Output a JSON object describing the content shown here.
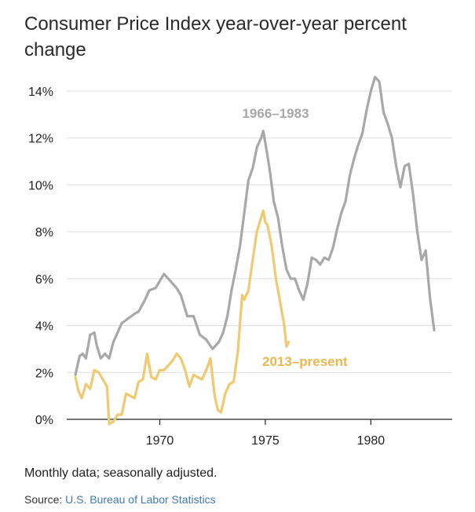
{
  "title": "Consumer Price Index year-over-year percent change",
  "note": "Monthly data; seasonally adjusted.",
  "source": {
    "label": "Source:",
    "link_text": "U.S. Bureau of Labor Statistics"
  },
  "colors": {
    "series_1966": "#a8a8a8",
    "series_2013": "#f0c970",
    "label_2013": "#e9b851",
    "grid": "#dddddd",
    "axis": "#222222"
  },
  "chart_data": {
    "type": "line",
    "ylabel": "",
    "xlabel": "",
    "ylim": [
      0,
      14.6
    ],
    "xlim": [
      1965.3,
      1983.6
    ],
    "yticks": [
      0,
      2,
      4,
      6,
      8,
      10,
      12,
      14
    ],
    "ytick_labels": [
      "0%",
      "2%",
      "4%",
      "6%",
      "8%",
      "10%",
      "12%",
      "14%"
    ],
    "xticks": [
      1970,
      1975,
      1980
    ],
    "xtick_labels": [
      "1970",
      "1975",
      "1980"
    ],
    "grid": true,
    "series": [
      {
        "name": "1966–1983",
        "x": [
          1966.0,
          1966.2,
          1966.35,
          1966.5,
          1966.7,
          1966.9,
          1967.0,
          1967.2,
          1967.4,
          1967.6,
          1967.8,
          1968.0,
          1968.2,
          1968.5,
          1968.8,
          1969.0,
          1969.3,
          1969.5,
          1969.8,
          1970.0,
          1970.2,
          1970.5,
          1970.7,
          1970.8,
          1971.0,
          1971.3,
          1971.6,
          1971.9,
          1972.2,
          1972.5,
          1972.8,
          1973.0,
          1973.2,
          1973.4,
          1973.6,
          1973.8,
          1974.0,
          1974.2,
          1974.4,
          1974.6,
          1974.8,
          1974.9,
          1975.0,
          1975.2,
          1975.4,
          1975.6,
          1975.8,
          1976.0,
          1976.2,
          1976.4,
          1976.6,
          1976.8,
          1977.0,
          1977.2,
          1977.4,
          1977.6,
          1977.8,
          1978.0,
          1978.2,
          1978.4,
          1978.6,
          1978.8,
          1979.0,
          1979.2,
          1979.4,
          1979.6,
          1979.8,
          1980.0,
          1980.2,
          1980.3,
          1980.4,
          1980.6,
          1980.8,
          1981.0,
          1981.2,
          1981.4,
          1981.6,
          1981.8,
          1982.0,
          1982.2,
          1982.4,
          1982.6,
          1982.8,
          1983.0
        ],
        "values": [
          1.9,
          2.7,
          2.8,
          2.6,
          3.6,
          3.7,
          3.2,
          2.6,
          2.8,
          2.6,
          3.3,
          3.7,
          4.1,
          4.3,
          4.5,
          4.6,
          5.1,
          5.5,
          5.6,
          5.9,
          6.2,
          5.9,
          5.7,
          5.6,
          5.3,
          4.4,
          4.4,
          3.6,
          3.4,
          3.0,
          3.3,
          3.7,
          4.4,
          5.5,
          6.4,
          7.4,
          8.8,
          10.2,
          10.7,
          11.6,
          12.0,
          12.3,
          11.8,
          10.7,
          9.3,
          8.6,
          7.4,
          6.4,
          6.0,
          6.0,
          5.5,
          5.1,
          5.8,
          6.9,
          6.8,
          6.6,
          6.9,
          6.8,
          7.3,
          8.1,
          8.8,
          9.3,
          10.4,
          11.1,
          11.7,
          12.2,
          13.2,
          14.0,
          14.6,
          14.5,
          14.4,
          13.1,
          12.6,
          12.0,
          10.8,
          9.9,
          10.8,
          10.9,
          9.6,
          8.0,
          6.8,
          7.2,
          5.2,
          3.8
        ]
      },
      {
        "name": "2013–present",
        "x": [
          1966.0,
          1966.15,
          1966.3,
          1966.5,
          1966.7,
          1966.9,
          1967.1,
          1967.3,
          1967.5,
          1967.6,
          1967.8,
          1968.0,
          1968.2,
          1968.4,
          1968.6,
          1968.8,
          1969.0,
          1969.2,
          1969.4,
          1969.6,
          1969.8,
          1970.0,
          1970.2,
          1970.4,
          1970.6,
          1970.8,
          1971.0,
          1971.2,
          1971.4,
          1971.6,
          1971.8,
          1972.0,
          1972.2,
          1972.4,
          1972.6,
          1972.75,
          1972.9,
          1973.1,
          1973.3,
          1973.5,
          1973.7,
          1973.9,
          1974.0,
          1974.2,
          1974.4,
          1974.6,
          1974.8,
          1974.9,
          1975.0,
          1975.1,
          1975.3,
          1975.5,
          1975.7,
          1975.9,
          1976.0,
          1976.1
        ],
        "values": [
          1.8,
          1.2,
          0.9,
          1.5,
          1.3,
          2.1,
          2.0,
          1.7,
          1.4,
          -0.2,
          -0.1,
          0.2,
          0.2,
          1.1,
          1.0,
          0.9,
          1.6,
          1.7,
          2.8,
          1.8,
          1.7,
          2.1,
          2.1,
          2.3,
          2.5,
          2.8,
          2.6,
          2.1,
          1.4,
          1.9,
          1.8,
          1.7,
          2.1,
          2.6,
          1.0,
          0.4,
          0.3,
          1.1,
          1.5,
          1.6,
          2.9,
          5.3,
          5.1,
          5.5,
          6.8,
          8.0,
          8.6,
          8.9,
          8.4,
          8.3,
          7.4,
          6.0,
          5.0,
          4.0,
          3.1,
          3.3
        ]
      }
    ],
    "annotations": [
      "1966–1983",
      "2013–present"
    ]
  }
}
